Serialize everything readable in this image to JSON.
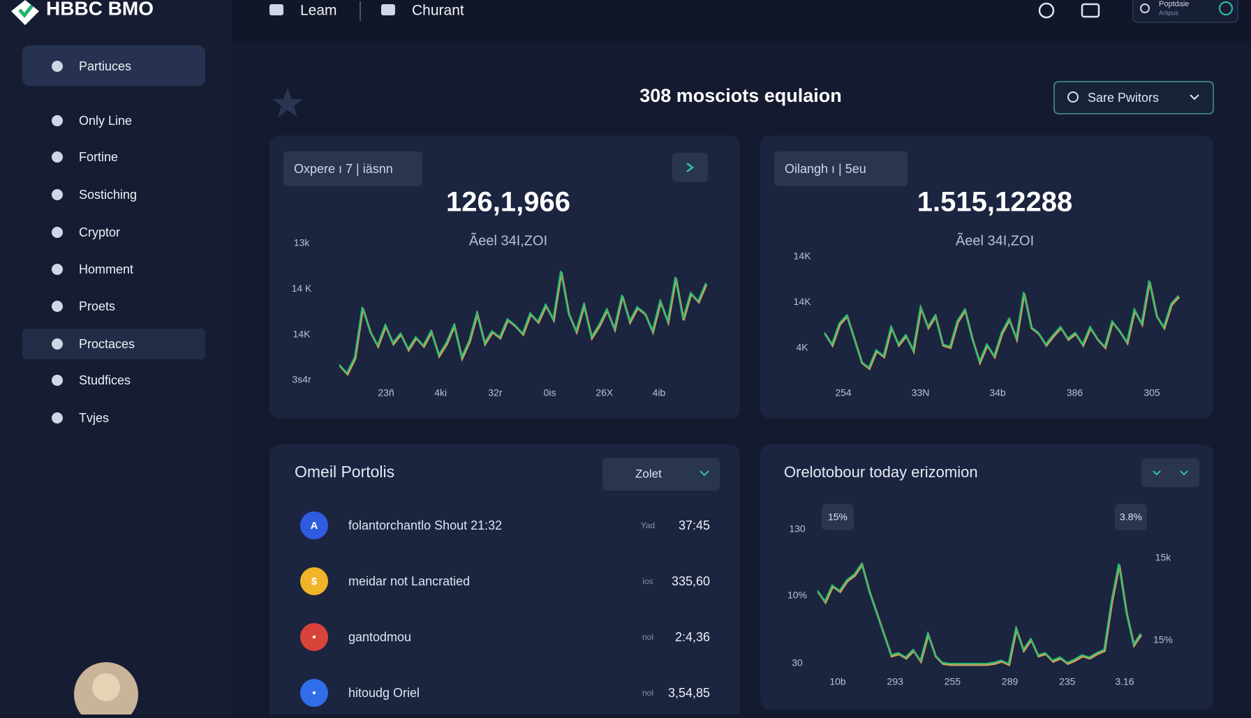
{
  "header": {
    "logo": "HBBC BMO",
    "nav": [
      "Leam",
      "Churant"
    ],
    "user": {
      "name": "Poptdaie",
      "role": "Artipus"
    }
  },
  "sidebar": {
    "items": [
      "Partiuces",
      "Only Line",
      "Fortine",
      "Sostiching",
      "Cryptor",
      "Homment",
      "Proets",
      "Proctaces",
      "Studfices",
      "Tvjes"
    ],
    "active": 0,
    "highlighted": 7
  },
  "page": {
    "title": "308 mosciots equlaion",
    "search": "Sare Pwitors"
  },
  "stat_cards": [
    {
      "pill": "Oxpere ı 7 | iäsnn",
      "value": "126,1,966",
      "subtitle": "Ãeel 34I,ZOI",
      "chart": {
        "type": "line",
        "color": "#1fbf74",
        "shadow_color": "#c9a15e",
        "ylim": [
          0,
          100
        ],
        "values": [
          12,
          5,
          18,
          60,
          40,
          28,
          45,
          30,
          38,
          25,
          35,
          28,
          40,
          20,
          30,
          45,
          18,
          32,
          55,
          30,
          40,
          35,
          50,
          45,
          38,
          55,
          48,
          62,
          50,
          90,
          55,
          40,
          62,
          35,
          45,
          58,
          42,
          70,
          48,
          60,
          55,
          40,
          65,
          48,
          85,
          50,
          72,
          65,
          80
        ],
        "y_labels": [
          "13k",
          "14 K",
          "14K",
          "3s4r"
        ],
        "x_labels": [
          "23ñ",
          "4ki",
          "32r",
          "0is",
          "26X",
          "4ib"
        ]
      }
    },
    {
      "pill": "Oilangh ı | 5eu",
      "value": "1.515,12288",
      "subtitle": "Ãeel 34I,ZOI",
      "chart": {
        "type": "line",
        "color": "#1fbf74",
        "shadow_color": "#c9a15e",
        "ylim": [
          0,
          100
        ],
        "values": [
          40,
          30,
          48,
          55,
          35,
          15,
          10,
          25,
          20,
          45,
          30,
          38,
          25,
          62,
          45,
          55,
          30,
          28,
          50,
          60,
          35,
          15,
          30,
          20,
          40,
          52,
          35,
          75,
          45,
          40,
          30,
          38,
          45,
          35,
          40,
          30,
          45,
          35,
          28,
          50,
          42,
          32,
          60,
          48,
          85,
          55,
          45,
          65,
          72
        ],
        "y_labels": [
          "14K",
          "14K",
          "4K"
        ],
        "x_labels": [
          "254",
          "33N",
          "34b",
          "386",
          "305"
        ]
      }
    }
  ],
  "portfolio": {
    "title": "Omeil Portolis",
    "filter": "Zolet",
    "rows": [
      {
        "icon": "A",
        "icon_color": "#2f5be0",
        "name": "folantorchantlo Shout 21:32",
        "tag": "Yad",
        "amount": "37:45"
      },
      {
        "icon": "$",
        "icon_color": "#f0b429",
        "name": "meidar not Lancratied",
        "tag": "ios",
        "amount": "335,60"
      },
      {
        "icon": "•",
        "icon_color": "#d9443a",
        "name": "gantodmou",
        "tag": "nol",
        "amount": "2:4,36"
      },
      {
        "icon": "•",
        "icon_color": "#2f6ee8",
        "name": "hitoudg Oriel",
        "tag": "nol",
        "amount": "3,54,85"
      }
    ]
  },
  "distribution": {
    "title": "Orelotobour today erizomion",
    "badges": [
      "15%",
      "3.8%"
    ],
    "chart": {
      "type": "line",
      "color": "#1fbf74",
      "shadow_color": "#c9a15e",
      "ylim": [
        0,
        100
      ],
      "values": [
        70,
        60,
        75,
        70,
        80,
        85,
        95,
        70,
        50,
        30,
        10,
        12,
        8,
        15,
        5,
        30,
        10,
        3,
        2,
        2,
        2,
        2,
        2,
        2,
        3,
        5,
        2,
        35,
        15,
        25,
        10,
        12,
        5,
        8,
        3,
        6,
        10,
        8,
        12,
        15,
        60,
        95,
        50,
        20,
        30
      ],
      "y_labels": [
        "130",
        "10%",
        "30"
      ],
      "y2_labels": [
        "15k",
        "15%"
      ],
      "x_labels": [
        "10b",
        "293",
        "255",
        "289",
        "235",
        "3.16"
      ]
    }
  }
}
